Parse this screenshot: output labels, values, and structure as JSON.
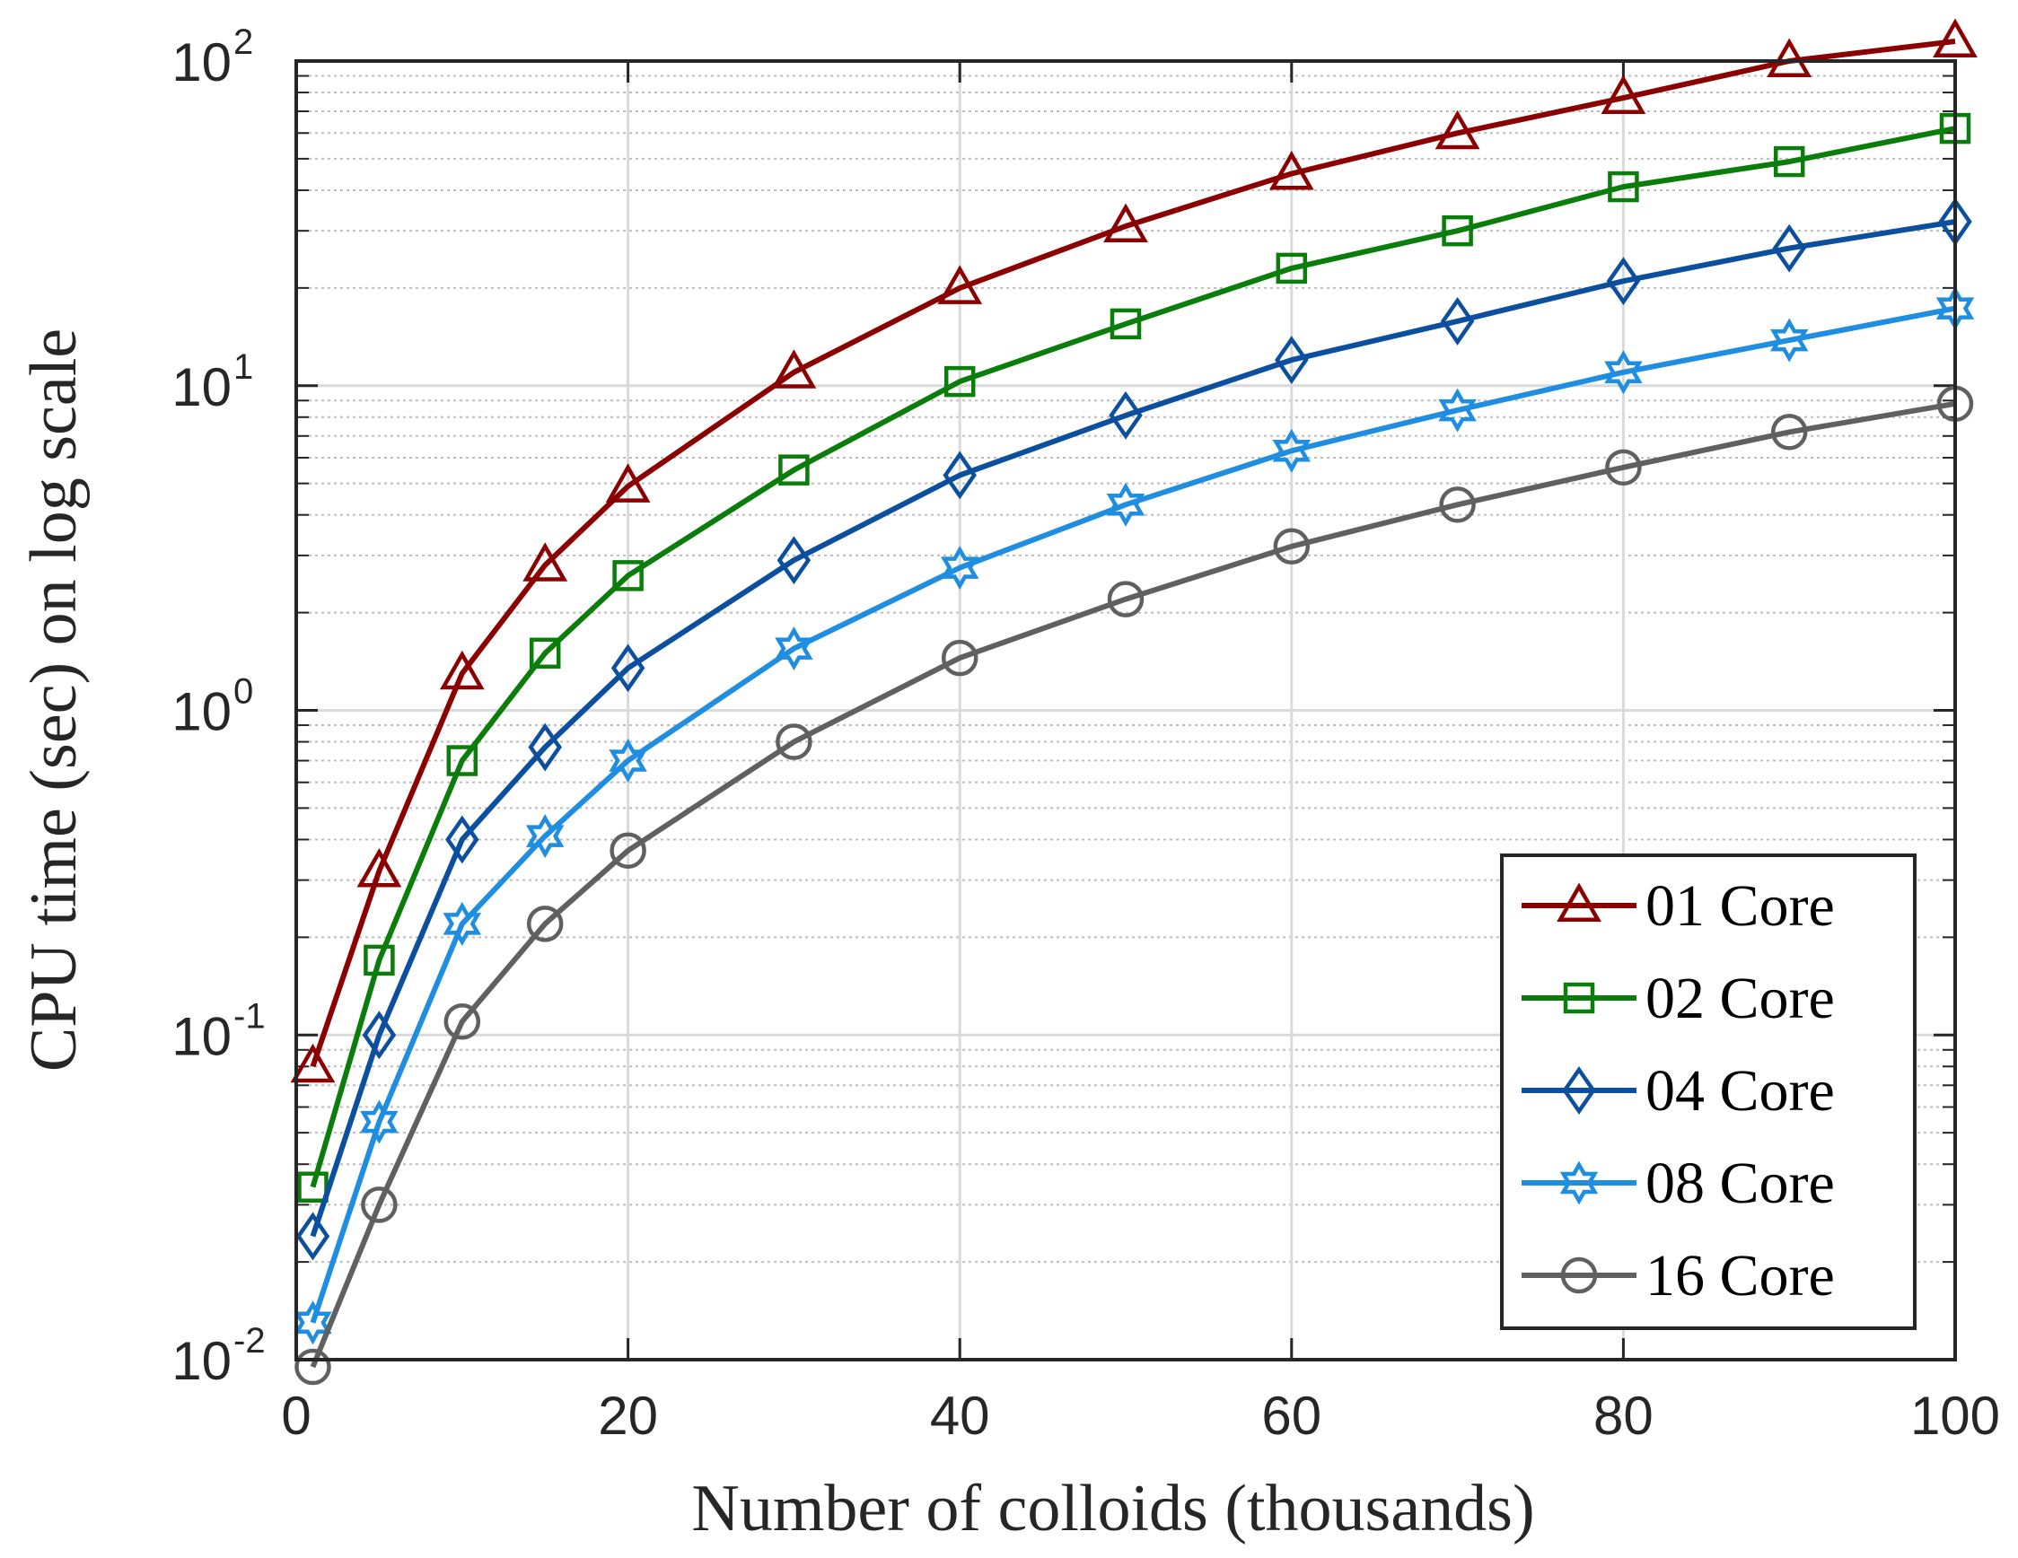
{
  "chart_data": {
    "type": "line",
    "title": "",
    "xlabel": "Number of colloids (thousands)",
    "ylabel": "CPU time (sec) on log scale",
    "x": [
      1,
      5,
      10,
      15,
      20,
      30,
      40,
      50,
      60,
      70,
      80,
      90,
      100
    ],
    "xlim": [
      0,
      100
    ],
    "ylim": [
      0.01,
      100
    ],
    "yscale": "log",
    "xticks": [
      0,
      20,
      40,
      60,
      80,
      100
    ],
    "xtick_labels": [
      "0",
      "20",
      "40",
      "60",
      "80",
      "100"
    ],
    "yticks": [
      0.01,
      0.1,
      1,
      10,
      100
    ],
    "ytick_labels": [
      {
        "base": "10",
        "exp": "-2"
      },
      {
        "base": "10",
        "exp": "-1"
      },
      {
        "base": "10",
        "exp": "0"
      },
      {
        "base": "10",
        "exp": "1"
      },
      {
        "base": "10",
        "exp": "2"
      }
    ],
    "grid": true,
    "minor_grid": true,
    "legend_position": "bottom-right",
    "series": [
      {
        "name": "01 Core",
        "color": "#8b0000",
        "marker": "triangle",
        "values": [
          0.08,
          0.32,
          1.3,
          2.8,
          4.9,
          11,
          20,
          31,
          45,
          60,
          77,
          100,
          115
        ]
      },
      {
        "name": "02 Core",
        "color": "#0a7d0a",
        "marker": "square",
        "values": [
          0.034,
          0.17,
          0.7,
          1.5,
          2.6,
          5.5,
          10.3,
          15.5,
          23,
          30,
          41,
          49,
          62
        ]
      },
      {
        "name": "04 Core",
        "color": "#0b4f9e",
        "marker": "diamond",
        "values": [
          0.024,
          0.1,
          0.4,
          0.77,
          1.35,
          2.9,
          5.3,
          8.1,
          12,
          15.8,
          21,
          26.5,
          32
        ]
      },
      {
        "name": "08 Core",
        "color": "#1f8ee0",
        "marker": "hexagram",
        "values": [
          0.013,
          0.054,
          0.22,
          0.41,
          0.7,
          1.55,
          2.75,
          4.3,
          6.3,
          8.4,
          11,
          13.8,
          17.3
        ]
      },
      {
        "name": "16 Core",
        "color": "#606060",
        "marker": "circle",
        "values": [
          0.0095,
          0.03,
          0.11,
          0.22,
          0.37,
          0.8,
          1.45,
          2.2,
          3.2,
          4.3,
          5.6,
          7.2,
          8.8
        ]
      }
    ]
  }
}
